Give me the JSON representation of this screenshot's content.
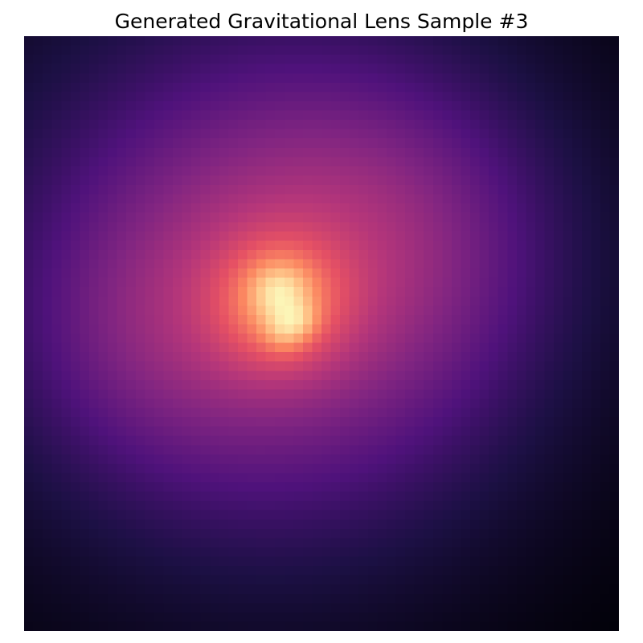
{
  "figure": {
    "title": "Generated Gravitational Lens Sample #3"
  },
  "image": {
    "colormap": "magma",
    "colormap_stops": [
      "#000004",
      "#1c1044",
      "#4f127b",
      "#812581",
      "#b5367a",
      "#e55064",
      "#fb8761",
      "#fec287",
      "#fcfdbf"
    ],
    "grid_resolution": 64,
    "axes_visible": false
  }
}
